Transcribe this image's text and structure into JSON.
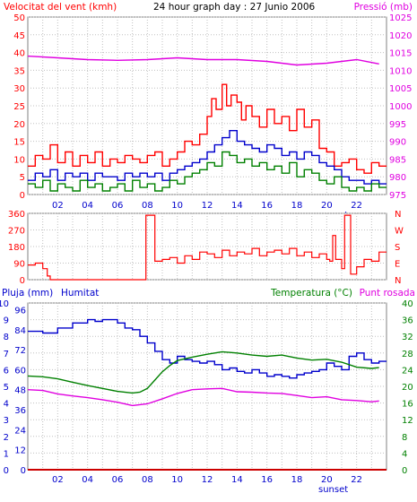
{
  "header": {
    "title": "24 hour graph day : 27 Junio 2006"
  },
  "colors": {
    "frame": "#808080",
    "grid": "#c0c0c0",
    "red": "#ff0000",
    "blue": "#0000cc",
    "green": "#008000",
    "magenta": "#e000e0",
    "dark_red": "#cc0000"
  },
  "chart_data": [
    {
      "type": "line",
      "name": "wind-pressure",
      "left_axis_label": "Velocitat del vent (kmh)",
      "right_axis_label": "Pressió (mb)",
      "left_ticks": [
        "0",
        "5",
        "10",
        "15",
        "20",
        "25",
        "30",
        "35",
        "40",
        "45",
        "50"
      ],
      "right_ticks": [
        "975",
        "980",
        "985",
        "990",
        "995",
        "1000",
        "1005",
        "1010",
        "1015",
        "1020",
        "1025"
      ],
      "x_ticks": [
        "02",
        "04",
        "06",
        "08",
        "10",
        "12",
        "14",
        "16",
        "18",
        "20",
        "22"
      ],
      "x_extra_label": "sunset",
      "ylim_left": [
        0,
        50
      ],
      "ylim_right": [
        975,
        1025
      ],
      "xlim": [
        0,
        24
      ],
      "grid": true,
      "series": [
        {
          "key": "gust",
          "color": "red",
          "axis": "left",
          "x": [
            0,
            0.5,
            1,
            1.5,
            2,
            2.5,
            3,
            3.5,
            4,
            4.5,
            5,
            5.5,
            6,
            6.5,
            7,
            7.5,
            8,
            8.5,
            9,
            9.5,
            10,
            10.5,
            11,
            11.5,
            12,
            12.3,
            12.6,
            13,
            13.3,
            13.6,
            14,
            14.3,
            14.6,
            15,
            15.5,
            16,
            16.5,
            17,
            17.5,
            18,
            18.5,
            19,
            19.5,
            20,
            20.5,
            21,
            21.5,
            22,
            22.5,
            23,
            23.5
          ],
          "values": [
            8,
            11,
            10,
            14,
            9,
            12,
            8,
            11,
            9,
            12,
            8,
            10,
            9,
            11,
            10,
            9,
            11,
            12,
            8,
            10,
            12,
            15,
            14,
            17,
            22,
            27,
            24,
            31,
            25,
            28,
            26,
            21,
            25,
            22,
            19,
            24,
            20,
            22,
            18,
            24,
            19,
            21,
            13,
            12,
            8,
            9,
            10,
            7,
            6,
            9,
            8
          ]
        },
        {
          "key": "speed",
          "color": "blue",
          "axis": "left",
          "x": [
            0,
            0.5,
            1,
            1.5,
            2,
            2.5,
            3,
            3.5,
            4,
            4.5,
            5,
            5.5,
            6,
            6.5,
            7,
            7.5,
            8,
            8.5,
            9,
            9.5,
            10,
            10.5,
            11,
            11.5,
            12,
            12.5,
            13,
            13.5,
            14,
            14.5,
            15,
            15.5,
            16,
            16.5,
            17,
            17.5,
            18,
            18.5,
            19,
            19.5,
            20,
            20.5,
            21,
            21.5,
            22,
            22.5,
            23,
            23.5
          ],
          "values": [
            4,
            6,
            5,
            7,
            4,
            6,
            5,
            6,
            4,
            6,
            5,
            5,
            4,
            6,
            5,
            6,
            5,
            6,
            4,
            6,
            7,
            8,
            9,
            10,
            12,
            14,
            16,
            18,
            15,
            14,
            13,
            12,
            14,
            13,
            11,
            12,
            10,
            12,
            11,
            9,
            8,
            7,
            5,
            4,
            4,
            3,
            4,
            3
          ]
        },
        {
          "key": "mean",
          "color": "green",
          "axis": "left",
          "x": [
            0,
            0.5,
            1,
            1.5,
            2,
            2.5,
            3,
            3.5,
            4,
            4.5,
            5,
            5.5,
            6,
            6.5,
            7,
            7.5,
            8,
            8.5,
            9,
            9.5,
            10,
            10.5,
            11,
            11.5,
            12,
            12.5,
            13,
            13.5,
            14,
            14.5,
            15,
            15.5,
            16,
            16.5,
            17,
            17.5,
            18,
            18.5,
            19,
            19.5,
            20,
            20.5,
            21,
            21.5,
            22,
            22.5,
            23,
            23.5
          ],
          "values": [
            3,
            2,
            4,
            1,
            3,
            2,
            1,
            4,
            2,
            3,
            1,
            2,
            3,
            1,
            4,
            2,
            3,
            1,
            2,
            4,
            3,
            5,
            6,
            7,
            9,
            8,
            12,
            11,
            9,
            10,
            8,
            9,
            7,
            8,
            6,
            9,
            5,
            7,
            6,
            4,
            3,
            5,
            2,
            1,
            2,
            1,
            3,
            2
          ]
        },
        {
          "key": "pressure",
          "color": "magenta",
          "axis": "right",
          "x": [
            0,
            2,
            4,
            6,
            8,
            10,
            12,
            14,
            16,
            18,
            20,
            22,
            23.5
          ],
          "values": [
            1014,
            1013.5,
            1013,
            1012.8,
            1013,
            1013.5,
            1013,
            1013,
            1012.5,
            1011.5,
            1012,
            1013,
            1011.8
          ]
        }
      ]
    },
    {
      "type": "line",
      "name": "wind-direction",
      "left_ticks": [
        "0",
        "90",
        "180",
        "270",
        "360"
      ],
      "right_ticks": [
        "N",
        "E",
        "S",
        "W",
        "N"
      ],
      "ylim": [
        0,
        360
      ],
      "xlim": [
        0,
        24
      ],
      "grid": true,
      "series": [
        {
          "key": "direction",
          "color": "red",
          "x": [
            0,
            0.5,
            1,
            1.3,
            1.5,
            2,
            3,
            4,
            5,
            6,
            7,
            7.5,
            7.8,
            7.9,
            8.2,
            8.5,
            9,
            9.5,
            10,
            10.5,
            11,
            11.5,
            12,
            12.5,
            13,
            13.5,
            14,
            14.5,
            15,
            15.5,
            16,
            16.5,
            17,
            17.5,
            18,
            18.5,
            19,
            19.5,
            20,
            20.2,
            20.4,
            20.6,
            21,
            21.2,
            21.4,
            21.6,
            22,
            22.5,
            23,
            23.5
          ],
          "values": [
            80,
            90,
            60,
            20,
            0,
            0,
            0,
            0,
            0,
            0,
            0,
            0,
            0,
            350,
            350,
            100,
            110,
            120,
            90,
            130,
            110,
            150,
            140,
            120,
            160,
            130,
            150,
            140,
            170,
            130,
            150,
            160,
            140,
            170,
            130,
            150,
            120,
            140,
            110,
            100,
            240,
            110,
            60,
            350,
            350,
            30,
            70,
            110,
            100,
            150
          ]
        }
      ]
    },
    {
      "type": "line",
      "name": "rain-humidity-temperature",
      "left_axis_label": "Pluja (mm)",
      "series_label_humidity": "Humitat",
      "right_axis_label": "Temperatura (°C)",
      "right_axis_label_2": "Punt rosada",
      "rain_ticks": [
        "0",
        "1",
        "2",
        "3",
        "4",
        "5",
        "6",
        "7",
        "8",
        "9",
        "10"
      ],
      "humidity_ticks": [
        "0",
        "12",
        "24",
        "36",
        "48",
        "60",
        "72",
        "84",
        "96"
      ],
      "right_ticks": [
        "0",
        "4",
        "8",
        "12",
        "16",
        "20",
        "24",
        "28",
        "32",
        "36",
        "40"
      ],
      "x_ticks": [
        "02",
        "04",
        "06",
        "08",
        "10",
        "12",
        "14",
        "16",
        "18",
        "20",
        "22"
      ],
      "x_extra_label": "sunset",
      "ylim_rain": [
        0,
        10
      ],
      "ylim_humidity": [
        0,
        100
      ],
      "ylim_temp": [
        0,
        40
      ],
      "xlim": [
        0,
        24
      ],
      "grid": true,
      "series": [
        {
          "key": "humidity",
          "color": "blue",
          "axis": "humidity",
          "x": [
            0,
            1,
            2,
            3,
            4,
            4.5,
            5,
            6,
            6.5,
            7,
            7.5,
            8,
            8.5,
            9,
            9.5,
            10,
            10.5,
            11,
            11.5,
            12,
            12.5,
            13,
            13.5,
            14,
            14.5,
            15,
            15.5,
            16,
            16.5,
            17,
            17.5,
            18,
            18.5,
            19,
            19.5,
            20,
            20.5,
            21,
            21.5,
            22,
            22.5,
            23,
            23.5
          ],
          "values": [
            83,
            82,
            85,
            88,
            90,
            89,
            90,
            88,
            85,
            84,
            80,
            76,
            71,
            66,
            64,
            68,
            66,
            65,
            64,
            65,
            63,
            60,
            61,
            59,
            58,
            60,
            58,
            56,
            57,
            56,
            55,
            57,
            58,
            59,
            60,
            64,
            62,
            60,
            68,
            70,
            66,
            64,
            65
          ]
        },
        {
          "key": "temperature",
          "color": "green",
          "axis": "temp",
          "x": [
            0,
            1,
            2,
            3,
            4,
            5,
            6,
            7,
            7.5,
            8,
            8.5,
            9,
            9.5,
            10,
            11,
            12,
            13,
            14,
            15,
            16,
            17,
            18,
            19,
            20,
            21,
            22,
            23,
            23.5
          ],
          "values": [
            22.5,
            22.3,
            21.8,
            21,
            20.2,
            19.5,
            18.8,
            18.4,
            18.6,
            19.5,
            21.5,
            23.5,
            25,
            26.2,
            27,
            27.7,
            28.3,
            28,
            27.5,
            27.2,
            27.5,
            26.8,
            26.3,
            26.5,
            25.8,
            24.6,
            24.3,
            24.5
          ]
        },
        {
          "key": "dewpoint",
          "color": "magenta",
          "axis": "temp",
          "x": [
            0,
            1,
            2,
            3,
            4,
            5,
            6,
            7,
            8,
            9,
            10,
            11,
            12,
            13,
            14,
            15,
            16,
            17,
            18,
            19,
            20,
            21,
            22,
            23,
            23.5
          ],
          "values": [
            19.2,
            19,
            18.2,
            17.7,
            17.3,
            16.8,
            16.2,
            15.4,
            15.8,
            17,
            18.3,
            19.2,
            19.4,
            19.5,
            18.7,
            18.6,
            18.4,
            18.3,
            17.8,
            17.3,
            17.5,
            16.8,
            16.6,
            16.3,
            16.5
          ]
        },
        {
          "key": "rain",
          "color": "dark_red",
          "axis": "rain",
          "x": [
            0,
            24
          ],
          "values": [
            0,
            0
          ]
        }
      ]
    }
  ]
}
